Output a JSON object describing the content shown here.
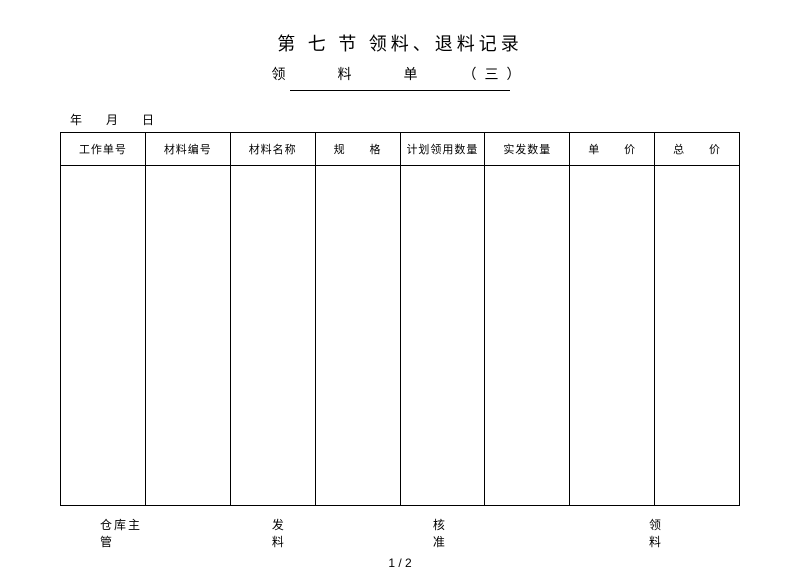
{
  "title": "第 七 节  领料、退料记录",
  "subtitle": "领　　料　　单　　（三）",
  "dateLine": "年　月　日",
  "table": {
    "columns": [
      {
        "label": "工作单号",
        "width": "12.5%"
      },
      {
        "label": "材料编号",
        "width": "12.5%"
      },
      {
        "label": "材料名称",
        "width": "12.5%"
      },
      {
        "label": "规　　格",
        "width": "12.5%"
      },
      {
        "label": "计划领用数量",
        "width": "12.5%"
      },
      {
        "label": "实发数量",
        "width": "12.5%"
      },
      {
        "label": "单　　价",
        "width": "12.5%"
      },
      {
        "label": "总　　价",
        "width": "12.5%"
      }
    ],
    "bodyHeight": 340,
    "borderColor": "#000000"
  },
  "footer": {
    "items": [
      "仓库主管",
      "发　料",
      "核　准",
      "领　料"
    ]
  },
  "pageNumber": "1 / 2",
  "colors": {
    "background": "#ffffff",
    "text": "#000000",
    "border": "#000000"
  },
  "fonts": {
    "family": "SimSun",
    "titleSize": 18,
    "subtitleSize": 14,
    "bodySize": 12,
    "headerSize": 11
  }
}
